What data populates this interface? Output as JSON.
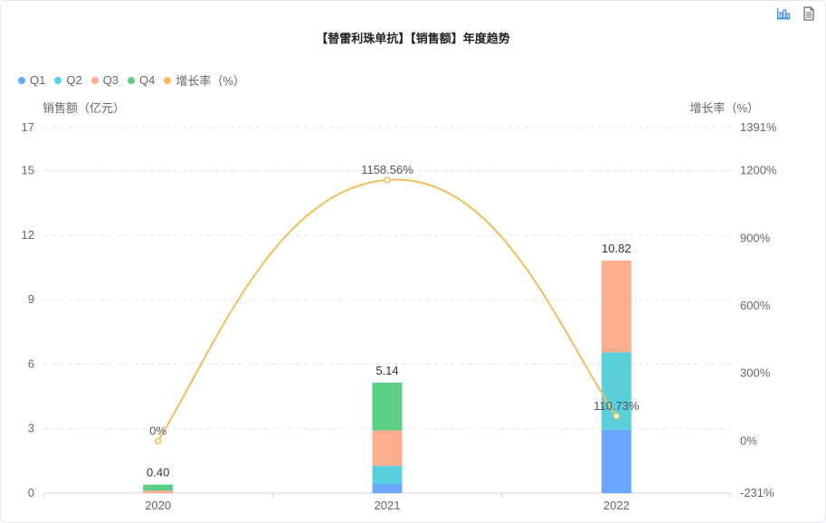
{
  "title": "【替雷利珠单抗】【销售额】年度趋势",
  "toolbar": {
    "chart_icon": "bar-chart-icon",
    "data_icon": "document-icon"
  },
  "colors": {
    "Q1": "#6aa7ff",
    "Q2": "#5ad0df",
    "Q3": "#ffad8f",
    "Q4": "#5bd084",
    "growth": "#f5bd5a"
  },
  "chart_data": {
    "type": "bar",
    "categories": [
      "2020",
      "2021",
      "2022"
    ],
    "series": [
      {
        "name": "Q1",
        "values": [
          0.0,
          0.42,
          2.95
        ]
      },
      {
        "name": "Q2",
        "values": [
          0.0,
          0.85,
          3.6
        ]
      },
      {
        "name": "Q3",
        "values": [
          0.12,
          1.65,
          4.27
        ]
      },
      {
        "name": "Q4",
        "values": [
          0.28,
          2.22,
          0.0
        ]
      }
    ],
    "totals": [
      "0.40",
      "5.14",
      "10.82"
    ],
    "line_series": {
      "name": "增长率（%）",
      "values": [
        0,
        1158.56,
        110.73
      ],
      "labels": [
        "0%",
        "1158.56%",
        "110.73%"
      ]
    },
    "ylabel": "销售额（亿元）",
    "ylabel_right": "增长率（%）",
    "ylim": [
      0,
      17
    ],
    "yticks": [
      "0",
      "3",
      "6",
      "9",
      "12",
      "15",
      "17"
    ],
    "ylim_right": [
      -231,
      1391
    ],
    "yticks_right": [
      "-231%",
      "0%",
      "300%",
      "600%",
      "900%",
      "1200%",
      "1391%"
    ],
    "legend_position": "top-left",
    "grid": true
  }
}
